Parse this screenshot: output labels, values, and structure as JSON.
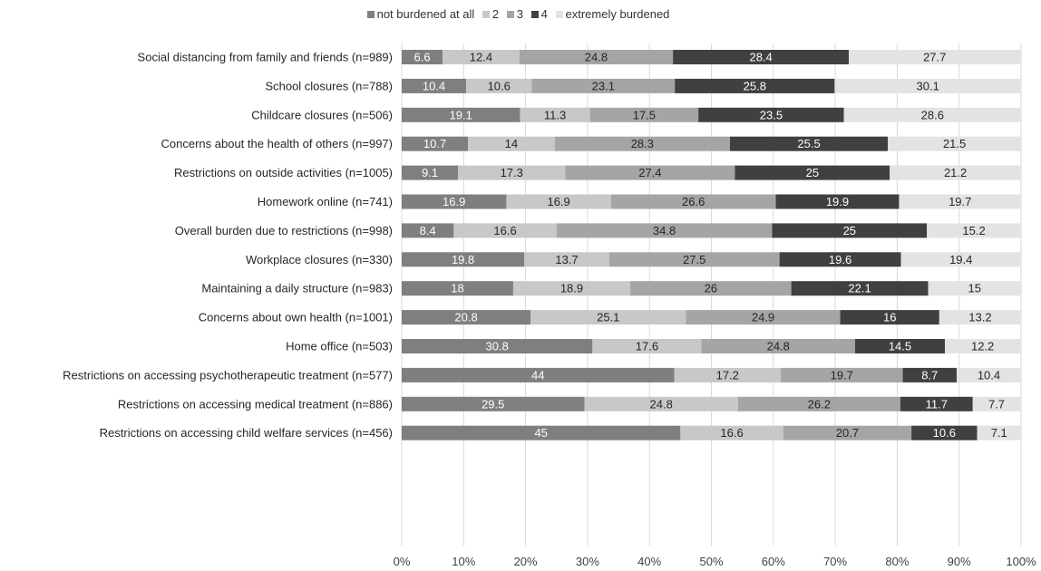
{
  "chart_data": {
    "type": "bar",
    "orientation": "horizontal",
    "stacked": true,
    "legend_position": "top",
    "grid": true,
    "xlim": [
      0,
      100
    ],
    "x_ticks": [
      "0%",
      "10%",
      "20%",
      "30%",
      "40%",
      "50%",
      "60%",
      "70%",
      "80%",
      "90%",
      "100%"
    ],
    "categories": [
      "Social distancing from family and friends (n=989)",
      "School closures (n=788)",
      "Childcare closures (n=506)",
      "Concerns about the health of others (n=997)",
      "Restrictions on outside activities (n=1005)",
      "Homework online (n=741)",
      "Overall burden due to restrictions (n=998)",
      "Workplace closures (n=330)",
      "Maintaining a daily structure (n=983)",
      "Concerns about own health (n=1001)",
      "Home office (n=503)",
      "Restrictions on accessing psychotherapeutic treatment (n=577)",
      "Restrictions on accessing medical treatment (n=886)",
      "Restrictions on accessing child welfare services (n=456)"
    ],
    "series": [
      {
        "name": "not burdened at all",
        "color": "#7f7f7f",
        "label_color": "#ffffff",
        "values": [
          6.6,
          10.4,
          19.1,
          10.7,
          9.1,
          16.9,
          8.4,
          19.8,
          18,
          20.8,
          30.8,
          44,
          29.5,
          45
        ]
      },
      {
        "name": "2",
        "color": "#c8c8c8",
        "label_color": "#262626",
        "values": [
          12.4,
          10.6,
          11.3,
          14,
          17.3,
          16.9,
          16.6,
          13.7,
          18.9,
          25.1,
          17.6,
          17.2,
          24.8,
          16.6
        ]
      },
      {
        "name": "3",
        "color": "#a5a5a5",
        "label_color": "#262626",
        "values": [
          24.8,
          23.1,
          17.5,
          28.3,
          27.4,
          26.6,
          34.8,
          27.5,
          26,
          24.9,
          24.8,
          19.7,
          26.2,
          20.7
        ]
      },
      {
        "name": "4",
        "color": "#404040",
        "label_color": "#ffffff",
        "values": [
          28.4,
          25.8,
          23.5,
          25.5,
          25,
          19.9,
          25,
          19.6,
          22.1,
          16,
          14.5,
          8.7,
          11.7,
          10.6
        ]
      },
      {
        "name": "extremely burdened",
        "color": "#e3e3e3",
        "label_color": "#262626",
        "values": [
          27.7,
          30.1,
          28.6,
          21.5,
          21.2,
          19.7,
          15.2,
          19.4,
          15,
          13.2,
          12.2,
          10.4,
          7.7,
          7.1
        ]
      }
    ]
  }
}
